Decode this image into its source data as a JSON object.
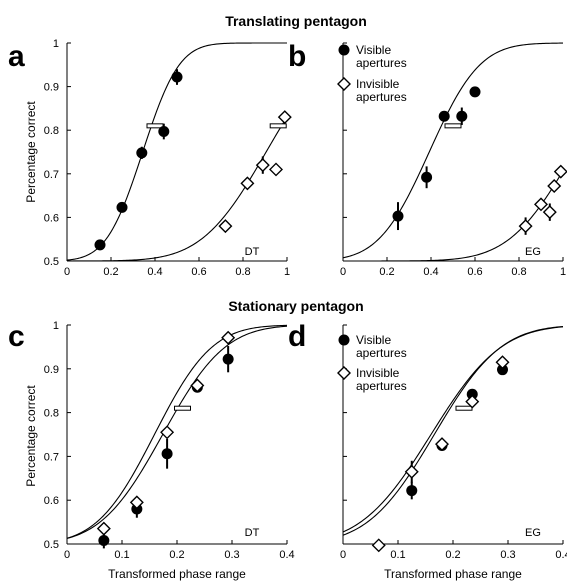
{
  "figure": {
    "row_titles": [
      "Translating pentagon",
      "Stationary pentagon"
    ],
    "colors": {
      "visible": "#000000",
      "invisible": "#ffffff",
      "stroke": "#000000"
    }
  },
  "chart_data": [
    {
      "panel": "a",
      "type": "scatter",
      "row_title": "Translating pentagon",
      "ylabel": "Percentage correct",
      "xlabel": "",
      "xlim": [
        0,
        1
      ],
      "ylim": [
        0.5,
        1.0
      ],
      "xticks": [
        "0",
        "0.2",
        "0.4",
        "0.6",
        "0.8",
        "1"
      ],
      "yticks": [
        "0.5",
        "0.6",
        "0.7",
        "0.8",
        "0.9",
        "1"
      ],
      "observer": "DT",
      "legend": null,
      "series": [
        {
          "marker": "filled-circle",
          "points": [
            [
              0.15,
              0.537,
              0.012
            ],
            [
              0.25,
              0.623,
              0.0
            ],
            [
              0.34,
              0.748,
              0.014
            ],
            [
              0.44,
              0.797,
              0.018
            ],
            [
              0.5,
              0.922,
              0.018
            ]
          ],
          "threshold": [
            0.4,
            0.81
          ],
          "fit": {
            "mu": 0.344,
            "sigma": 0.13
          }
        },
        {
          "marker": "open-diamond",
          "points": [
            [
              0.72,
              0.58,
              0.0
            ],
            [
              0.82,
              0.678,
              0.0
            ],
            [
              0.89,
              0.72,
              0.02
            ],
            [
              0.95,
              0.71,
              0.0
            ],
            [
              0.99,
              0.83,
              0.0
            ]
          ],
          "threshold": [
            0.96,
            0.81
          ],
          "fit": {
            "mu": 0.905,
            "sigma": 0.23
          }
        }
      ]
    },
    {
      "panel": "b",
      "type": "scatter",
      "ylabel": "",
      "xlabel": "",
      "xlim": [
        0,
        1
      ],
      "ylim": [
        0.5,
        1.0
      ],
      "xticks": [
        "0",
        "0.2",
        "0.4",
        "0.6",
        "0.8",
        "1"
      ],
      "yticks": [],
      "observer": "EG",
      "legend": [
        "Visible\napertures",
        "Invisible\napertures"
      ],
      "series": [
        {
          "name": "Visible apertures",
          "marker": "filled-circle",
          "points": [
            [
              0.25,
              0.603,
              0.032
            ],
            [
              0.38,
              0.692,
              0.025
            ],
            [
              0.46,
              0.832,
              0.0
            ],
            [
              0.54,
              0.832,
              0.02
            ],
            [
              0.6,
              0.888,
              0.0
            ]
          ],
          "threshold": [
            0.5,
            0.81
          ],
          "fit": {
            "mu": 0.392,
            "sigma": 0.18
          }
        },
        {
          "name": "Invisible apertures",
          "marker": "open-diamond",
          "points": [
            [
              0.83,
              0.58,
              0.02
            ],
            [
              0.9,
              0.63,
              0.0
            ],
            [
              0.94,
              0.612,
              0.02
            ],
            [
              0.96,
              0.672,
              0.0
            ],
            [
              0.99,
              0.705,
              0.0
            ]
          ],
          "threshold": null,
          "fit": {
            "mu": 1.05,
            "sigma": 0.23
          }
        }
      ]
    },
    {
      "panel": "c",
      "type": "scatter",
      "row_title": "Stationary pentagon",
      "ylabel": "Percentage correct",
      "xlabel": "Transformed phase range",
      "xlim": [
        0,
        0.4
      ],
      "ylim": [
        0.5,
        1.0
      ],
      "xticks": [
        "0",
        "0.1",
        "0.2",
        "0.3",
        "0.4"
      ],
      "yticks": [
        "0.5",
        "0.6",
        "0.7",
        "0.8",
        "0.9",
        "1"
      ],
      "observer": "DT",
      "legend": null,
      "series": [
        {
          "marker": "filled-circle",
          "points": [
            [
              0.067,
              0.508,
              0.018
            ],
            [
              0.127,
              0.58,
              0.02
            ],
            [
              0.182,
              0.706,
              0.034
            ],
            [
              0.237,
              0.858,
              0.0
            ],
            [
              0.293,
              0.922,
              0.03
            ]
          ],
          "threshold": [
            0.21,
            0.81
          ],
          "fit": {
            "mu": 0.174,
            "sigma": 0.089
          }
        },
        {
          "marker": "open-diamond",
          "points": [
            [
              0.067,
              0.535,
              0.0
            ],
            [
              0.127,
              0.595,
              0.0
            ],
            [
              0.182,
              0.755,
              0.0
            ],
            [
              0.237,
              0.862,
              0.0
            ],
            [
              0.293,
              0.971,
              0.0
            ]
          ],
          "threshold": null,
          "fit": {
            "mu": 0.159,
            "sigma": 0.082
          }
        }
      ]
    },
    {
      "panel": "d",
      "type": "scatter",
      "ylabel": "",
      "xlabel": "Transformed phase range",
      "xlim": [
        0,
        0.4
      ],
      "ylim": [
        0.5,
        1.0
      ],
      "xticks": [
        "0",
        "0.1",
        "0.2",
        "0.3",
        "0.4"
      ],
      "yticks": [],
      "observer": "EG",
      "legend": [
        "Visible\napertures",
        "Invisible\napertures"
      ],
      "series": [
        {
          "name": "Visible apertures",
          "marker": "filled-circle",
          "points": [
            [
              0.125,
              0.622,
              0.02
            ],
            [
              0.18,
              0.725,
              0.0
            ],
            [
              0.235,
              0.842,
              0.0
            ],
            [
              0.29,
              0.898,
              0.0
            ]
          ],
          "threshold": [
            0.22,
            0.81
          ],
          "fit": {
            "mu": 0.166,
            "sigma": 0.095
          }
        },
        {
          "name": "Invisible apertures",
          "marker": "open-diamond",
          "points": [
            [
              0.065,
              0.497,
              0.0
            ],
            [
              0.125,
              0.665,
              0.025
            ],
            [
              0.18,
              0.728,
              0.0
            ],
            [
              0.235,
              0.825,
              0.0
            ],
            [
              0.29,
              0.915,
              0.0
            ]
          ],
          "threshold": null,
          "fit": {
            "mu": 0.16,
            "sigma": 0.1
          }
        }
      ]
    }
  ]
}
